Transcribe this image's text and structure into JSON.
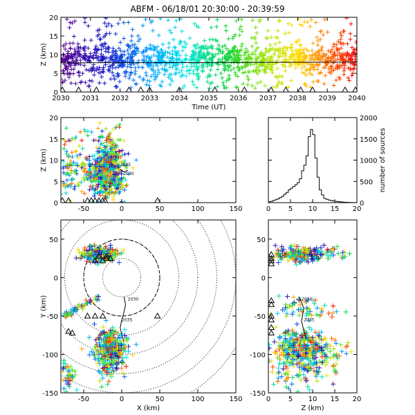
{
  "title": "ABFM - 06/18/01 20:30:00 - 20:39:59",
  "chart_data": [
    {
      "id": "time_height",
      "type": "scatter",
      "xlabel": "Time (UT)",
      "ylabel": "Z (km)",
      "xlim": [
        2030,
        2040
      ],
      "ylim": [
        0,
        20
      ],
      "xticks": [
        "2030",
        "2031",
        "2032",
        "2033",
        "2034",
        "2035",
        "2036",
        "2037",
        "2038",
        "2039",
        "2040"
      ],
      "yticks": [
        "0",
        "5",
        "10",
        "15",
        "20"
      ],
      "trend_line": {
        "x": [
          2030,
          2040
        ],
        "y": [
          7.8,
          8.0
        ]
      },
      "station_markers_x": [
        2030.05,
        2030.6,
        2031.2,
        2032.3,
        2032.7,
        2033.0,
        2034.0,
        2035.2,
        2036.2,
        2037.1,
        2037.6,
        2038.1,
        2038.5,
        2039.6,
        2039.95
      ]
    },
    {
      "id": "x_height",
      "type": "scatter",
      "xlabel": "",
      "ylabel": "Z (km)",
      "xlim": [
        -80,
        150
      ],
      "ylim": [
        0,
        20
      ],
      "xticks": [
        "-50",
        "0",
        "50",
        "100",
        "150"
      ],
      "yticks": [
        "0",
        "5",
        "10",
        "15",
        "20"
      ],
      "track_labels": [
        "2035",
        "2030"
      ],
      "station_markers": [
        [
          -78,
          0
        ],
        [
          -70,
          0
        ],
        [
          -45,
          0
        ],
        [
          -40,
          0
        ],
        [
          -35,
          0
        ],
        [
          -30,
          0
        ],
        [
          -25,
          0
        ],
        [
          -22,
          0
        ],
        [
          47,
          0
        ]
      ]
    },
    {
      "id": "height_histogram",
      "type": "line",
      "ylabel": "number of sources",
      "ylabel_side": "right",
      "xlim": [
        0,
        20
      ],
      "ylim": [
        0,
        2000
      ],
      "xticks": [
        "0",
        "5",
        "10",
        "15",
        "20"
      ],
      "yticks": [
        "0",
        "500",
        "1000",
        "1500",
        "2000"
      ],
      "bin_edges": [
        0,
        0.5,
        1,
        1.5,
        2,
        2.5,
        3,
        3.5,
        4,
        4.5,
        5,
        5.5,
        6,
        6.5,
        7,
        7.5,
        8,
        8.5,
        9,
        9.5,
        10,
        10.5,
        11,
        11.5,
        12,
        12.5,
        13,
        13.5,
        14,
        14.5,
        15,
        15.5,
        16,
        16.5,
        17,
        17.5,
        18,
        18.5,
        19,
        19.5,
        20
      ],
      "counts": [
        20,
        30,
        50,
        70,
        90,
        120,
        150,
        200,
        240,
        300,
        340,
        380,
        420,
        470,
        560,
        750,
        880,
        1100,
        1550,
        1720,
        1600,
        1050,
        600,
        300,
        180,
        100,
        80,
        60,
        50,
        40,
        30,
        25,
        20,
        15,
        10,
        8,
        5,
        4,
        3,
        2
      ]
    },
    {
      "id": "plan_view",
      "type": "scatter",
      "xlabel": "X (km)",
      "ylabel": "Y (km)",
      "xlim": [
        -80,
        150
      ],
      "ylim": [
        -150,
        75
      ],
      "xticks": [
        "-50",
        "0",
        "50",
        "100",
        "150"
      ],
      "yticks": [
        "-150",
        "-100",
        "-50",
        "0",
        "50"
      ],
      "range_rings_km": [
        25,
        50,
        75,
        100,
        125,
        150,
        175
      ],
      "boundary_radius_km": 50,
      "track": [
        [
          3,
          -25
        ],
        [
          5,
          -35
        ],
        [
          3,
          -45
        ],
        [
          0,
          -55
        ],
        [
          -2,
          -65
        ],
        [
          0,
          -75
        ],
        [
          3,
          -83
        ]
      ],
      "track_labels": [
        {
          "text": "2030",
          "x": 8,
          "y": -30
        },
        {
          "text": "2035",
          "x": 0,
          "y": -57
        }
      ],
      "station_markers": [
        [
          -45,
          -50
        ],
        [
          -35,
          -50
        ],
        [
          -25,
          -50
        ],
        [
          -30,
          28
        ],
        [
          -20,
          28
        ],
        [
          -25,
          22
        ],
        [
          -15,
          25
        ],
        [
          47,
          -50
        ],
        [
          -70,
          -70
        ],
        [
          -65,
          -72
        ],
        [
          -20,
          25
        ],
        [
          -35,
          22
        ]
      ]
    },
    {
      "id": "z_y",
      "type": "scatter",
      "xlabel": "Z (km)",
      "ylabel": "",
      "xlim": [
        0,
        20
      ],
      "ylim": [
        -150,
        75
      ],
      "xticks": [
        "0",
        "5",
        "10",
        "15",
        "20"
      ],
      "yticks": [
        "-150",
        "-100",
        "-50",
        "0",
        "50"
      ],
      "track_labels": [
        "2030",
        "2035"
      ],
      "station_markers": [
        [
          0.2,
          30
        ],
        [
          0.2,
          25
        ],
        [
          0.2,
          22
        ],
        [
          0.2,
          18
        ],
        [
          0.2,
          -30
        ],
        [
          0.2,
          -35
        ],
        [
          0.2,
          -50
        ],
        [
          0.2,
          -55
        ],
        [
          0.2,
          -65
        ],
        [
          0.2,
          -72
        ]
      ]
    }
  ]
}
